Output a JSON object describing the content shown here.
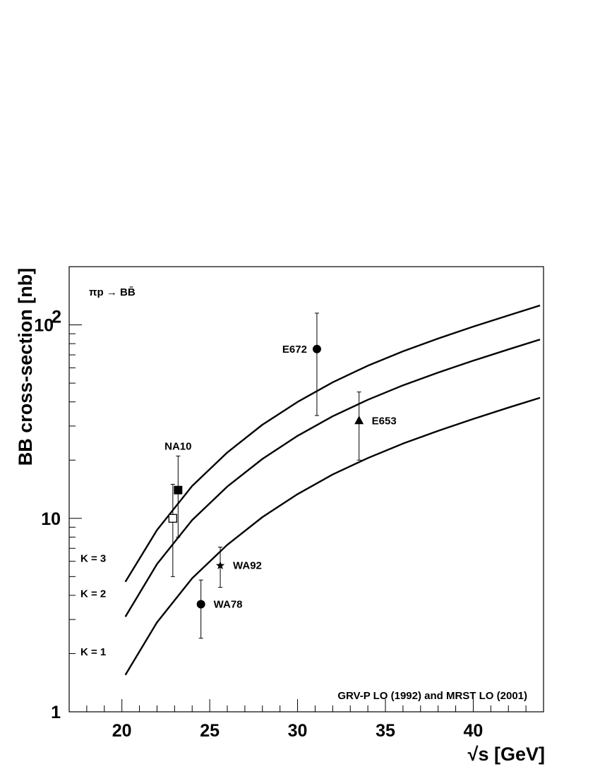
{
  "chart_data": {
    "type": "scatter",
    "title": "",
    "xlabel": "√s [GeV]",
    "ylabel": "BB cross-section [nb]",
    "xlim": [
      17,
      44
    ],
    "ylim": [
      1,
      200
    ],
    "y_scale": "log",
    "x_ticks": [
      {
        "value": 20,
        "label": "20"
      },
      {
        "value": 25,
        "label": "25"
      },
      {
        "value": 30,
        "label": "30"
      },
      {
        "value": 35,
        "label": "35"
      },
      {
        "value": 40,
        "label": "40"
      }
    ],
    "y_ticks": [
      {
        "value": 1,
        "label": "1"
      },
      {
        "value": 10,
        "label": "10"
      },
      {
        "value": 100,
        "label": "10",
        "exponent": "2"
      }
    ],
    "process_label": "πp → BB̄",
    "footnote": "GRV-P LO (1992) and MRST LO (2001)",
    "series": [
      {
        "name": "K = 3",
        "x": [
          20.2,
          22,
          24,
          26,
          28,
          30,
          32,
          34,
          36,
          38,
          40,
          42,
          43.8
        ],
        "values": [
          4.7,
          8.7,
          14.7,
          21.9,
          30.5,
          40,
          50.5,
          61.5,
          73,
          85,
          98,
          112,
          126
        ]
      },
      {
        "name": "K = 2",
        "x": [
          20.2,
          22,
          24,
          26,
          28,
          30,
          32,
          34,
          36,
          38,
          40,
          42,
          43.8
        ],
        "values": [
          3.1,
          5.8,
          9.8,
          14.6,
          20.3,
          26.7,
          33.7,
          41,
          48.7,
          56.7,
          65.3,
          74.7,
          84
        ]
      },
      {
        "name": "K = 1",
        "x": [
          20.2,
          22,
          24,
          26,
          28,
          30,
          32,
          34,
          36,
          38,
          40,
          42,
          43.8
        ],
        "values": [
          1.55,
          2.9,
          4.9,
          7.3,
          10.15,
          13.35,
          16.85,
          20.5,
          24.35,
          28.35,
          32.65,
          37.35,
          42
        ]
      }
    ],
    "points": [
      {
        "label": "E672",
        "x": 31.1,
        "y": 75,
        "yerr_low": 34,
        "yerr_high": 115,
        "marker": "circle-filled"
      },
      {
        "label": "E653",
        "x": 33.5,
        "y": 32,
        "yerr_low": 20,
        "yerr_high": 45,
        "marker": "triangle-filled"
      },
      {
        "label": "NA10",
        "x": 23.2,
        "y": 14,
        "yerr_low": 8,
        "yerr_high": 21,
        "marker": "square-filled"
      },
      {
        "label": "",
        "x": 22.9,
        "y": 10,
        "yerr_low": 5,
        "yerr_high": 15,
        "marker": "square-open"
      },
      {
        "label": "WA92",
        "x": 25.6,
        "y": 5.7,
        "yerr_low": 4.4,
        "yerr_high": 7.1,
        "marker": "star"
      },
      {
        "label": "WA78",
        "x": 24.5,
        "y": 3.6,
        "yerr_low": 2.4,
        "yerr_high": 4.8,
        "marker": "circle-filled"
      }
    ]
  }
}
